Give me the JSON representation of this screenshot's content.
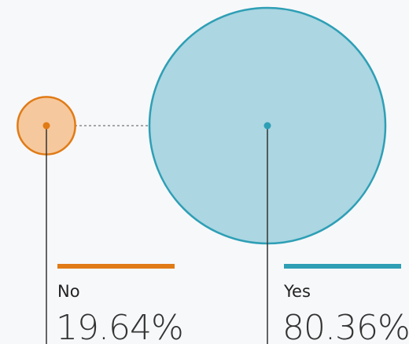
{
  "chart_data": {
    "type": "bubble",
    "categories": [
      "No",
      "Yes"
    ],
    "values": [
      19.64,
      80.36
    ],
    "value_labels": [
      "19.64%",
      "80.36%"
    ],
    "colors": [
      "#e07b16",
      "#2e9fb5"
    ],
    "fills": [
      "#f6c89d",
      "#abd6e2"
    ]
  }
}
